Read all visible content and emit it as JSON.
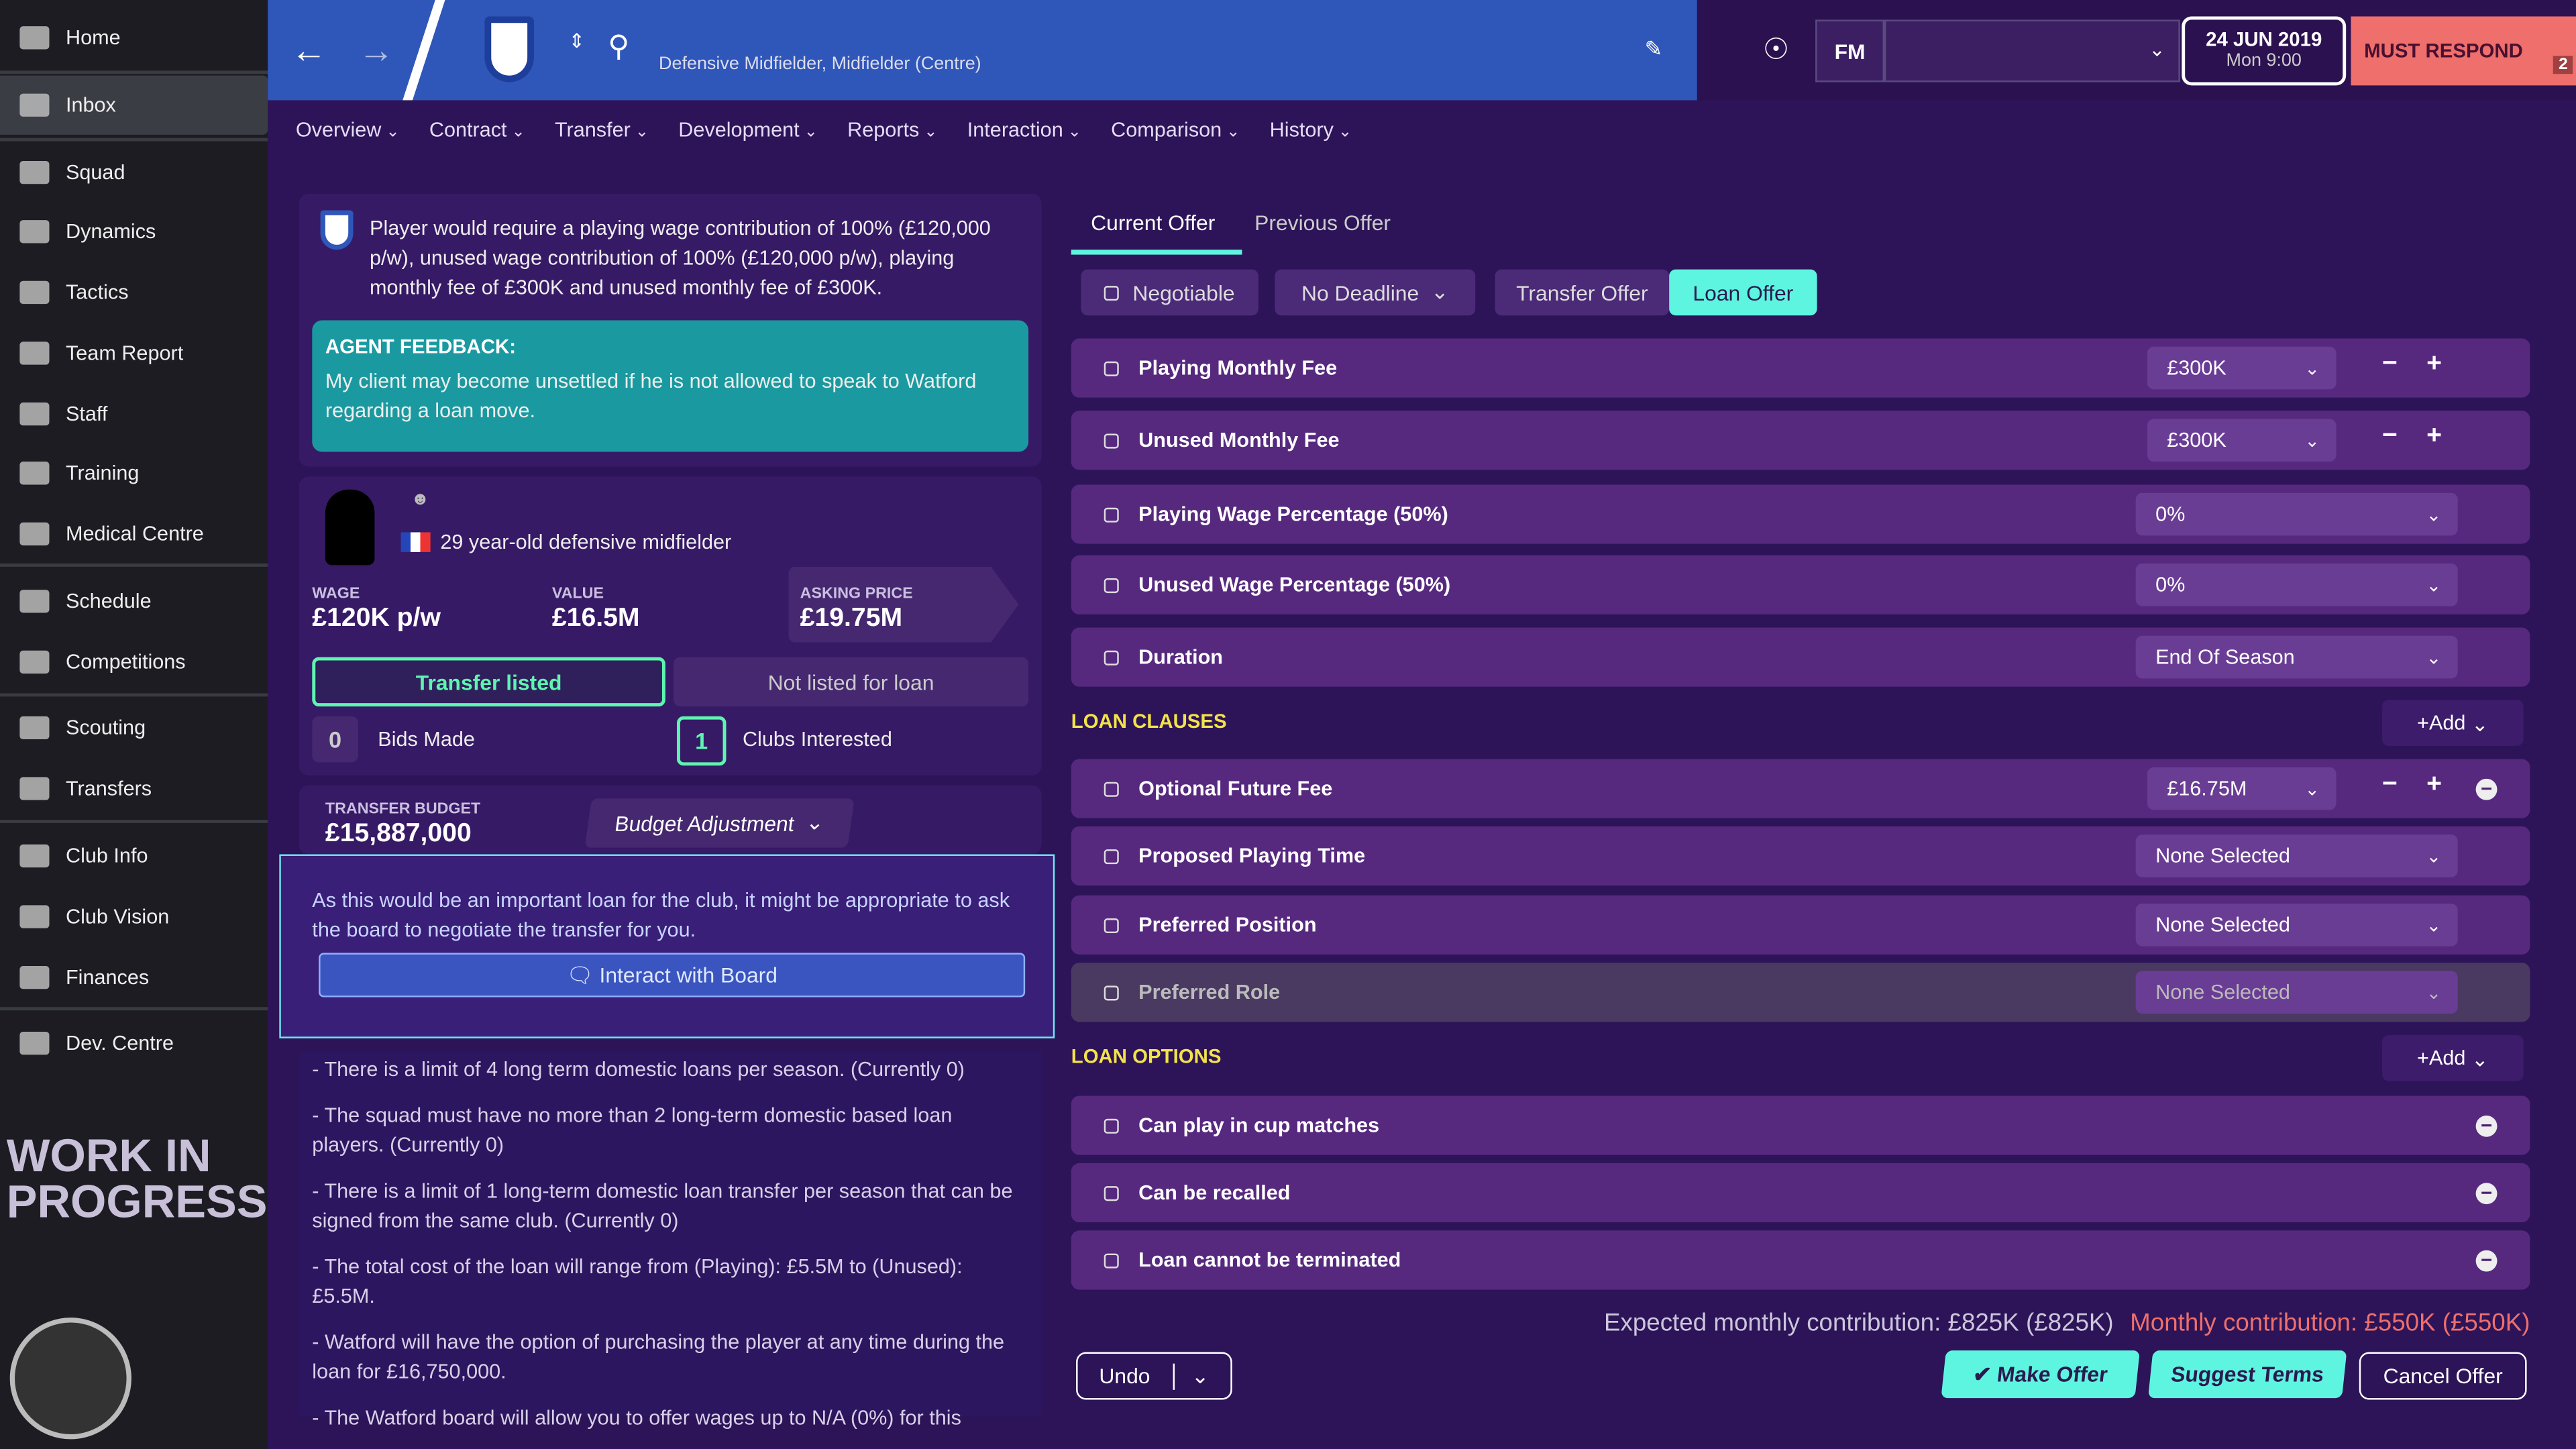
{
  "sidebar": {
    "items": [
      {
        "label": "Home",
        "icon": "home-icon"
      },
      {
        "label": "Inbox",
        "icon": "inbox-icon",
        "active": true
      },
      {
        "label": "Squad",
        "icon": "squad-icon"
      },
      {
        "label": "Dynamics",
        "icon": "dynamics-icon"
      },
      {
        "label": "Tactics",
        "icon": "tactics-icon"
      },
      {
        "label": "Team Report",
        "icon": "report-icon"
      },
      {
        "label": "Staff",
        "icon": "staff-icon"
      },
      {
        "label": "Training",
        "icon": "training-icon"
      },
      {
        "label": "Medical Centre",
        "icon": "medical-icon"
      },
      {
        "label": "Schedule",
        "icon": "calendar-icon"
      },
      {
        "label": "Competitions",
        "icon": "trophy-icon"
      },
      {
        "label": "Scouting",
        "icon": "search-icon"
      },
      {
        "label": "Transfers",
        "icon": "transfer-icon"
      },
      {
        "label": "Club Info",
        "icon": "shield-icon"
      },
      {
        "label": "Club Vision",
        "icon": "vision-icon"
      },
      {
        "label": "Finances",
        "icon": "money-icon"
      },
      {
        "label": "Dev. Centre",
        "icon": "dev-icon"
      }
    ],
    "watermark": "WORK IN PROGRESS"
  },
  "header": {
    "subtitle": "Defensive Midfielder, Midfielder (Centre)",
    "fm": "FM",
    "date": "24 JUN 2019",
    "time": "Mon 9:00",
    "must_respond": "MUST RESPOND",
    "badge_count": "2"
  },
  "nav": [
    "Overview",
    "Contract",
    "Transfer",
    "Development",
    "Reports",
    "Interaction",
    "Comparison",
    "History"
  ],
  "left": {
    "notice": "Player would require a playing wage contribution of 100% (£120,000 p/w), unused wage contribution of 100% (£120,000 p/w), playing monthly fee of £300K and unused monthly fee of £300K.",
    "agent_title": "AGENT FEEDBACK:",
    "agent_text": "My client may become unsettled if he is not allowed to speak to Watford regarding a loan move.",
    "player_desc": "29 year-old defensive midfielder",
    "wage_label": "WAGE",
    "wage": "£120K p/w",
    "value_label": "VALUE",
    "value": "£16.5M",
    "asking_label": "ASKING PRICE",
    "asking": "£19.75M",
    "transfer_listed": "Transfer listed",
    "loan_status": "Not listed for loan",
    "bids_count": "0",
    "bids_label": "Bids Made",
    "clubs_count": "1",
    "clubs_label": "Clubs Interested",
    "budget_label": "TRANSFER BUDGET",
    "budget": "£15,887,000",
    "budget_adjust": "Budget Adjustment",
    "board_text": "As this would be an important loan for the club, it might be appropriate to ask the board to negotiate the transfer for you.",
    "board_button": "Interact with Board",
    "notes": [
      "- There is a limit of 4 long term domestic loans per season. (Currently 0)",
      "- The squad must have no more than 2 long-term domestic based loan players. (Currently 0)",
      "- There is a limit of 1 long-term domestic loan transfer per season that can be signed from the same club. (Currently 0)",
      "- The total cost of the loan will range from (Playing): £5.5M to (Unused): £5.5M.",
      "- Watford will have the option of purchasing the player at any time during the loan for £16,750,000.",
      "- The Watford board will allow you to offer wages up to N/A (0%) for this"
    ]
  },
  "right": {
    "tabs": [
      "Current Offer",
      "Previous Offer"
    ],
    "negotiable": "Negotiable",
    "deadline": "No Deadline",
    "offer_types": [
      "Transfer Offer",
      "Loan Offer"
    ],
    "rows": [
      {
        "name": "Playing Monthly Fee",
        "value": "£300K",
        "stepper": true
      },
      {
        "name": "Unused Monthly Fee",
        "value": "£300K",
        "stepper": true
      },
      {
        "name": "Playing Wage Percentage (50%)",
        "value": "0%"
      },
      {
        "name": "Unused Wage Percentage (50%)",
        "value": "0%"
      },
      {
        "name": "Duration",
        "value": "End Of Season"
      }
    ],
    "clauses_title": "LOAN CLAUSES",
    "add": "Add",
    "clauses": [
      {
        "name": "Optional Future Fee",
        "value": "£16.75M",
        "stepper": true,
        "remove": true
      },
      {
        "name": "Proposed Playing Time",
        "value": "None Selected"
      },
      {
        "name": "Preferred Position",
        "value": "None Selected"
      },
      {
        "name": "Preferred Role",
        "value": "None Selected",
        "disabled": true
      }
    ],
    "options_title": "LOAN OPTIONS",
    "options": [
      "Can play in cup matches",
      "Can be recalled",
      "Loan cannot be terminated"
    ],
    "expected": "Expected monthly contribution: £825K (£825K)",
    "monthly": "Monthly contribution: £550K (£550K)",
    "undo": "Undo",
    "make_offer": "Make Offer",
    "suggest": "Suggest Terms",
    "cancel": "Cancel Offer"
  },
  "colors": {
    "accent": "#5ef5e0",
    "header_blue": "#2f56b9",
    "must_respond": "#ee6f6c",
    "section": "#f3e34a",
    "teal": "#1a9aa0"
  }
}
